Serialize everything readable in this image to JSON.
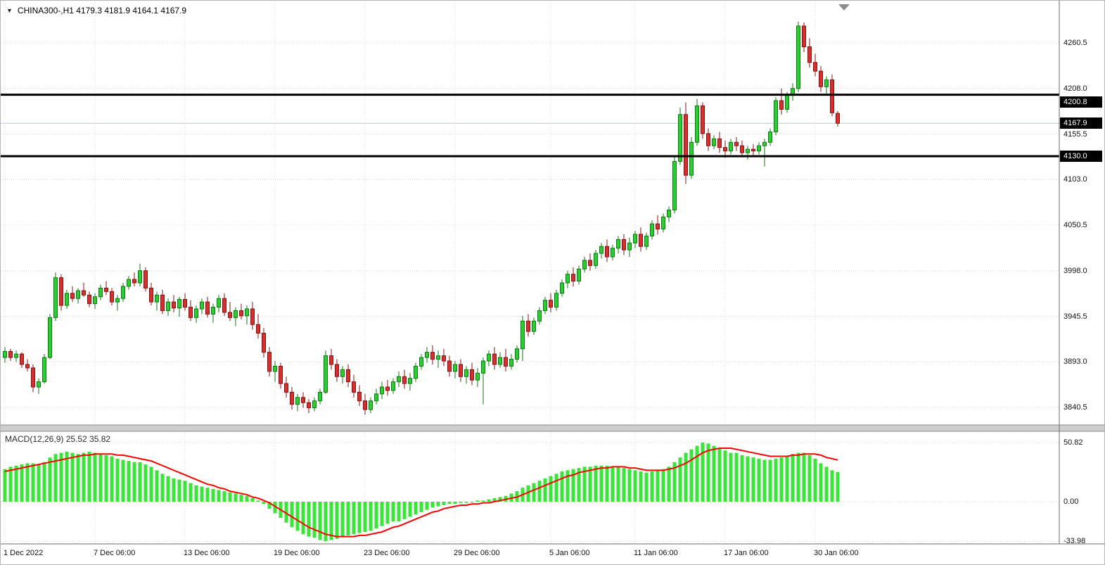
{
  "window": {
    "collapse_arrow": "▼",
    "symbol_info": "CHINA300-,H1  4179.3 4181.9 4164.1 4167.9"
  },
  "chart_data": {
    "type": "candlestick",
    "symbol": "CHINA300-",
    "timeframe": "H1",
    "ohlc_display": {
      "open": "4179.3",
      "high": "4181.9",
      "low": "4164.1",
      "close": "4167.9"
    },
    "current_price": 4167.9,
    "price_axis_labels": [
      "4260.5",
      "4208.0",
      "4155.5",
      "4103.0",
      "4050.5",
      "3998.0",
      "3945.5",
      "3893.0",
      "3840.5"
    ],
    "price_badges": [
      {
        "text": "4200.8",
        "value": 4200.8,
        "place": "below"
      },
      {
        "text": "4167.9",
        "value": 4167.9,
        "place": "center"
      },
      {
        "text": "4130.0",
        "value": 4130.0,
        "place": "center"
      }
    ],
    "horizontal_lines": [
      4200.8,
      4130.0
    ],
    "time_axis_labels": [
      {
        "text": "1 Dec 2022",
        "index": 0
      },
      {
        "text": "7 Dec 06:00",
        "index": 16
      },
      {
        "text": "13 Dec 06:00",
        "index": 32
      },
      {
        "text": "19 Dec 06:00",
        "index": 48
      },
      {
        "text": "23 Dec 06:00",
        "index": 64
      },
      {
        "text": "29 Dec 06:00",
        "index": 80
      },
      {
        "text": "5 Jan 06:00",
        "index": 97
      },
      {
        "text": "11 Jan 06:00",
        "index": 112
      },
      {
        "text": "17 Jan 06:00",
        "index": 128
      },
      {
        "text": "30 Jan 06:00",
        "index": 144
      }
    ],
    "candles": [
      [
        3898,
        3910,
        3892,
        3905
      ],
      [
        3905,
        3908,
        3894,
        3898
      ],
      [
        3898,
        3906,
        3893,
        3902
      ],
      [
        3902,
        3904,
        3886,
        3890
      ],
      [
        3890,
        3896,
        3882,
        3886
      ],
      [
        3886,
        3890,
        3858,
        3864
      ],
      [
        3864,
        3874,
        3856,
        3870
      ],
      [
        3870,
        3902,
        3868,
        3898
      ],
      [
        3898,
        3948,
        3896,
        3944
      ],
      [
        3944,
        3996,
        3940,
        3990
      ],
      [
        3990,
        3994,
        3952,
        3958
      ],
      [
        3958,
        3976,
        3954,
        3972
      ],
      [
        3972,
        3980,
        3962,
        3966
      ],
      [
        3966,
        3978,
        3960,
        3975
      ],
      [
        3975,
        3984,
        3968,
        3970
      ],
      [
        3970,
        3974,
        3956,
        3960
      ],
      [
        3960,
        3972,
        3954,
        3968
      ],
      [
        3968,
        3982,
        3964,
        3978
      ],
      [
        3978,
        3986,
        3970,
        3974
      ],
      [
        3974,
        3978,
        3958,
        3962
      ],
      [
        3962,
        3970,
        3952,
        3966
      ],
      [
        3966,
        3984,
        3962,
        3980
      ],
      [
        3980,
        3992,
        3976,
        3988
      ],
      [
        3988,
        3996,
        3980,
        3984
      ],
      [
        3984,
        4006,
        3980,
        3998
      ],
      [
        3998,
        4002,
        3974,
        3978
      ],
      [
        3978,
        3984,
        3958,
        3962
      ],
      [
        3962,
        3974,
        3952,
        3970
      ],
      [
        3970,
        3976,
        3948,
        3952
      ],
      [
        3952,
        3966,
        3946,
        3962
      ],
      [
        3962,
        3970,
        3950,
        3955
      ],
      [
        3955,
        3968,
        3945,
        3965
      ],
      [
        3965,
        3972,
        3952,
        3956
      ],
      [
        3956,
        3964,
        3940,
        3944
      ],
      [
        3944,
        3958,
        3938,
        3954
      ],
      [
        3954,
        3966,
        3948,
        3962
      ],
      [
        3962,
        3968,
        3944,
        3948
      ],
      [
        3948,
        3960,
        3938,
        3956
      ],
      [
        3956,
        3970,
        3950,
        3966
      ],
      [
        3966,
        3972,
        3946,
        3950
      ],
      [
        3950,
        3962,
        3940,
        3944
      ],
      [
        3944,
        3956,
        3934,
        3952
      ],
      [
        3952,
        3960,
        3942,
        3946
      ],
      [
        3946,
        3958,
        3936,
        3954
      ],
      [
        3954,
        3962,
        3930,
        3936
      ],
      [
        3936,
        3948,
        3920,
        3926
      ],
      [
        3926,
        3932,
        3898,
        3904
      ],
      [
        3904,
        3910,
        3876,
        3882
      ],
      [
        3882,
        3894,
        3870,
        3888
      ],
      [
        3888,
        3892,
        3862,
        3868
      ],
      [
        3868,
        3876,
        3852,
        3858
      ],
      [
        3858,
        3864,
        3838,
        3844
      ],
      [
        3844,
        3856,
        3836,
        3852
      ],
      [
        3852,
        3858,
        3840,
        3846
      ],
      [
        3846,
        3850,
        3834,
        3840
      ],
      [
        3840,
        3852,
        3836,
        3848
      ],
      [
        3848,
        3862,
        3844,
        3858
      ],
      [
        3858,
        3906,
        3856,
        3900
      ],
      [
        3900,
        3908,
        3884,
        3890
      ],
      [
        3890,
        3896,
        3870,
        3876
      ],
      [
        3876,
        3888,
        3868,
        3884
      ],
      [
        3884,
        3890,
        3864,
        3870
      ],
      [
        3870,
        3878,
        3852,
        3858
      ],
      [
        3858,
        3866,
        3842,
        3848
      ],
      [
        3848,
        3856,
        3832,
        3838
      ],
      [
        3838,
        3852,
        3834,
        3848
      ],
      [
        3848,
        3862,
        3844,
        3856
      ],
      [
        3856,
        3870,
        3850,
        3864
      ],
      [
        3864,
        3872,
        3854,
        3860
      ],
      [
        3860,
        3874,
        3856,
        3870
      ],
      [
        3870,
        3882,
        3864,
        3876
      ],
      [
        3876,
        3884,
        3862,
        3868
      ],
      [
        3868,
        3880,
        3860,
        3874
      ],
      [
        3874,
        3892,
        3870,
        3888
      ],
      [
        3888,
        3902,
        3884,
        3898
      ],
      [
        3898,
        3910,
        3892,
        3904
      ],
      [
        3904,
        3912,
        3890,
        3896
      ],
      [
        3896,
        3906,
        3886,
        3900
      ],
      [
        3900,
        3908,
        3888,
        3894
      ],
      [
        3894,
        3900,
        3876,
        3882
      ],
      [
        3882,
        3894,
        3874,
        3890
      ],
      [
        3890,
        3896,
        3870,
        3876
      ],
      [
        3876,
        3888,
        3868,
        3884
      ],
      [
        3884,
        3892,
        3866,
        3872
      ],
      [
        3872,
        3886,
        3864,
        3880
      ],
      [
        3880,
        3898,
        3844,
        3894
      ],
      [
        3894,
        3906,
        3888,
        3902
      ],
      [
        3902,
        3910,
        3884,
        3890
      ],
      [
        3890,
        3904,
        3886,
        3898
      ],
      [
        3898,
        3908,
        3882,
        3888
      ],
      [
        3888,
        3902,
        3884,
        3896
      ],
      [
        3896,
        3912,
        3892,
        3908
      ],
      [
        3908,
        3946,
        3894,
        3940
      ],
      [
        3940,
        3948,
        3922,
        3928
      ],
      [
        3928,
        3944,
        3924,
        3940
      ],
      [
        3940,
        3956,
        3936,
        3952
      ],
      [
        3952,
        3968,
        3948,
        3964
      ],
      [
        3964,
        3972,
        3950,
        3956
      ],
      [
        3956,
        3976,
        3952,
        3972
      ],
      [
        3972,
        3988,
        3968,
        3984
      ],
      [
        3984,
        3998,
        3978,
        3994
      ],
      [
        3994,
        4002,
        3980,
        3986
      ],
      [
        3986,
        4004,
        3982,
        4000
      ],
      [
        4000,
        4014,
        3996,
        4010
      ],
      [
        4010,
        4018,
        3998,
        4004
      ],
      [
        4004,
        4022,
        4000,
        4018
      ],
      [
        4018,
        4030,
        4012,
        4026
      ],
      [
        4026,
        4034,
        4008,
        4014
      ],
      [
        4014,
        4028,
        4010,
        4024
      ],
      [
        4024,
        4038,
        4018,
        4034
      ],
      [
        4034,
        4040,
        4016,
        4022
      ],
      [
        4022,
        4036,
        4014,
        4030
      ],
      [
        4030,
        4044,
        4024,
        4040
      ],
      [
        4040,
        4048,
        4020,
        4026
      ],
      [
        4026,
        4042,
        4022,
        4038
      ],
      [
        4038,
        4056,
        4034,
        4052
      ],
      [
        4052,
        4062,
        4040,
        4046
      ],
      [
        4046,
        4064,
        4042,
        4060
      ],
      [
        4060,
        4072,
        4054,
        4068
      ],
      [
        4068,
        4130,
        4064,
        4124
      ],
      [
        4124,
        4186,
        4120,
        4178
      ],
      [
        4178,
        4192,
        4098,
        4108
      ],
      [
        4108,
        4152,
        4104,
        4146
      ],
      [
        4146,
        4196,
        4142,
        4188
      ],
      [
        4188,
        4192,
        4150,
        4156
      ],
      [
        4156,
        4162,
        4136,
        4142
      ],
      [
        4142,
        4154,
        4138,
        4150
      ],
      [
        4150,
        4158,
        4134,
        4140
      ],
      [
        4140,
        4148,
        4128,
        4136
      ],
      [
        4136,
        4150,
        4132,
        4146
      ],
      [
        4146,
        4152,
        4136,
        4142
      ],
      [
        4142,
        4148,
        4130,
        4134
      ],
      [
        4134,
        4142,
        4126,
        4138
      ],
      [
        4138,
        4144,
        4130,
        4136
      ],
      [
        4136,
        4146,
        4132,
        4142
      ],
      [
        4142,
        4150,
        4118,
        4146
      ],
      [
        4146,
        4162,
        4142,
        4158
      ],
      [
        4158,
        4198,
        4154,
        4194
      ],
      [
        4194,
        4208,
        4178,
        4184
      ],
      [
        4184,
        4204,
        4180,
        4200
      ],
      [
        4200,
        4214,
        4194,
        4208
      ],
      [
        4208,
        4285,
        4204,
        4280
      ],
      [
        4280,
        4284,
        4250,
        4256
      ],
      [
        4256,
        4266,
        4232,
        4238
      ],
      [
        4238,
        4248,
        4222,
        4228
      ],
      [
        4228,
        4234,
        4204,
        4210
      ],
      [
        4210,
        4222,
        4202,
        4218
      ],
      [
        4218,
        4224,
        4176,
        4180
      ],
      [
        4179.3,
        4181.9,
        4164.1,
        4167.9
      ]
    ],
    "macd": {
      "label": "MACD(12,26,9) 25.52 35.82",
      "axis_labels": [
        "50.82",
        "0.00",
        "-33.98"
      ],
      "axis_values": [
        50.82,
        0,
        -33.98
      ],
      "histogram": [
        28,
        30,
        31,
        32,
        33,
        33,
        32,
        34,
        38,
        41,
        42,
        43,
        42,
        41,
        42,
        43,
        42,
        41,
        40,
        39,
        37,
        36,
        35,
        34,
        34,
        32,
        30,
        27,
        24,
        22,
        20,
        19,
        18,
        16,
        14,
        13,
        12,
        11,
        10,
        9,
        8,
        7,
        6,
        5,
        3,
        1,
        -2,
        -6,
        -10,
        -14,
        -18,
        -22,
        -25,
        -28,
        -30,
        -31,
        -33,
        -33.98,
        -33,
        -32,
        -30,
        -29,
        -28,
        -27,
        -26,
        -25,
        -23,
        -21,
        -19,
        -17,
        -17,
        -15,
        -13,
        -11,
        -9,
        -7,
        -5,
        -4,
        -3,
        -2,
        -2,
        -1,
        -1,
        0,
        1,
        1,
        2,
        3,
        4,
        5,
        7,
        9,
        12,
        14,
        16,
        18,
        20,
        22,
        24,
        26,
        27,
        28,
        29,
        30,
        30,
        31,
        31,
        31,
        30,
        30,
        29,
        28,
        27,
        26,
        25,
        26,
        27,
        28,
        30,
        34,
        38,
        42,
        45,
        48,
        50.82,
        50,
        48,
        46,
        44,
        42,
        42,
        40,
        39,
        38,
        37,
        36,
        36,
        37,
        38,
        39,
        41,
        42,
        42,
        40,
        37,
        33,
        30,
        27,
        25.52
      ],
      "signal": [
        26,
        27,
        28,
        29,
        30,
        31,
        32,
        33,
        34,
        35,
        36,
        37,
        38,
        39,
        40,
        40,
        41,
        41,
        41,
        41,
        40,
        40,
        39,
        38,
        37,
        36,
        35,
        33,
        31,
        29,
        27,
        25,
        23,
        21,
        19,
        17,
        15,
        14,
        12,
        11,
        9,
        8,
        7,
        6,
        4,
        3,
        1,
        -1,
        -4,
        -7,
        -10,
        -13,
        -16,
        -19,
        -22,
        -24,
        -26,
        -28,
        -29,
        -30,
        -30,
        -30,
        -30,
        -29,
        -29,
        -28,
        -27,
        -26,
        -24,
        -22,
        -21,
        -19,
        -17,
        -15,
        -13,
        -11,
        -9,
        -8,
        -6,
        -5,
        -4,
        -3,
        -3,
        -2,
        -2,
        -1,
        -1,
        0,
        1,
        2,
        3,
        4,
        6,
        8,
        10,
        12,
        14,
        16,
        18,
        20,
        22,
        23,
        25,
        26,
        27,
        28,
        29,
        29,
        30,
        30,
        30,
        29,
        29,
        28,
        27,
        27,
        27,
        27,
        28,
        29,
        31,
        33,
        36,
        39,
        42,
        44,
        45,
        46,
        46,
        46,
        45,
        44,
        43,
        42,
        41,
        40,
        39,
        39,
        39,
        39,
        40,
        40,
        41,
        41,
        41,
        40,
        38,
        37,
        35.82
      ]
    },
    "colors": {
      "up": "#2ecc2e",
      "up_border": "#0f7a0f",
      "down": "#d43030",
      "down_border": "#8a1010",
      "macd_hist": "#3be33b",
      "macd_signal": "#ff0000",
      "grid": "#dcdce6",
      "hline": "#000000",
      "current_price_line": "#b9c9d9",
      "badge_bg": "#000000",
      "badge_fg": "#ffffff",
      "separator": "#cfcfcf",
      "border": "#6b6b6b"
    }
  }
}
